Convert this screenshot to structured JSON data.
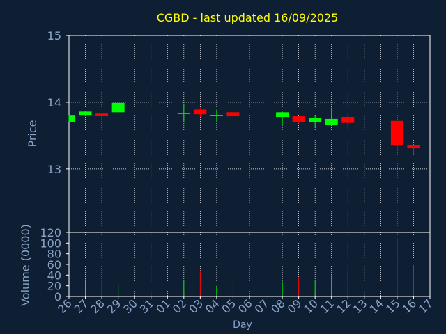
{
  "colors": {
    "background": "#0f1f33",
    "axis": "#ffffff",
    "grid": "#ffffff",
    "title": "#ffff00",
    "label": "#8aa4c8",
    "up": "#00ff00",
    "down": "#ff0000"
  },
  "chart_data": {
    "type": "candlestick",
    "title": "CGBD - last updated 16/09/2025",
    "ylabel": "Price",
    "ylabel_volume": "Volume (0000)",
    "xlabel": "Day",
    "ylim": [
      12.05,
      15.0
    ],
    "volume_ylim": [
      0,
      120
    ],
    "price_ticks": [
      "13",
      "14",
      "15"
    ],
    "volume_ticks": [
      "0",
      "20",
      "40",
      "60",
      "80",
      "100",
      "120"
    ],
    "x_tick_labels": [
      "26",
      "27",
      "28",
      "29",
      "30",
      "31",
      "01",
      "02",
      "03",
      "04",
      "05",
      "06",
      "07",
      "08",
      "09",
      "10",
      "11",
      "12",
      "13",
      "14",
      "15",
      "16",
      "17"
    ],
    "candles": [
      {
        "x": 0,
        "open": 13.7,
        "close": 13.81,
        "high": 13.81,
        "low": 13.7,
        "volume": 0
      },
      {
        "x": 1,
        "open": 13.81,
        "close": 13.86,
        "high": 13.87,
        "low": 13.79,
        "volume": 32
      },
      {
        "x": 2,
        "open": 13.83,
        "close": 13.8,
        "high": 13.84,
        "low": 13.74,
        "volume": 30
      },
      {
        "x": 3,
        "open": 13.85,
        "close": 13.99,
        "high": 13.99,
        "low": 13.85,
        "volume": 22
      },
      {
        "x": 7,
        "open": 13.83,
        "close": 13.84,
        "high": 13.98,
        "low": 13.71,
        "volume": 30
      },
      {
        "x": 8,
        "open": 13.89,
        "close": 13.82,
        "high": 13.92,
        "low": 13.78,
        "volume": 49
      },
      {
        "x": 9,
        "open": 13.8,
        "close": 13.81,
        "high": 13.89,
        "low": 13.7,
        "volume": 20
      },
      {
        "x": 10,
        "open": 13.85,
        "close": 13.79,
        "high": 13.88,
        "low": 13.75,
        "volume": 31
      },
      {
        "x": 13,
        "open": 13.78,
        "close": 13.85,
        "high": 13.86,
        "low": 13.65,
        "volume": 28
      },
      {
        "x": 14,
        "open": 13.79,
        "close": 13.7,
        "high": 13.79,
        "low": 13.68,
        "volume": 36
      },
      {
        "x": 15,
        "open": 13.7,
        "close": 13.76,
        "high": 13.8,
        "low": 13.62,
        "volume": 31
      },
      {
        "x": 16,
        "open": 13.66,
        "close": 13.75,
        "high": 13.92,
        "low": 13.66,
        "volume": 40
      },
      {
        "x": 17,
        "open": 13.78,
        "close": 13.69,
        "high": 13.84,
        "low": 13.63,
        "volume": 46
      },
      {
        "x": 20,
        "open": 13.72,
        "close": 13.35,
        "high": 13.73,
        "low": 13.28,
        "volume": 110
      },
      {
        "x": 21,
        "open": 13.36,
        "close": 13.31,
        "high": 13.37,
        "low": 13.21,
        "volume": 59
      }
    ]
  }
}
